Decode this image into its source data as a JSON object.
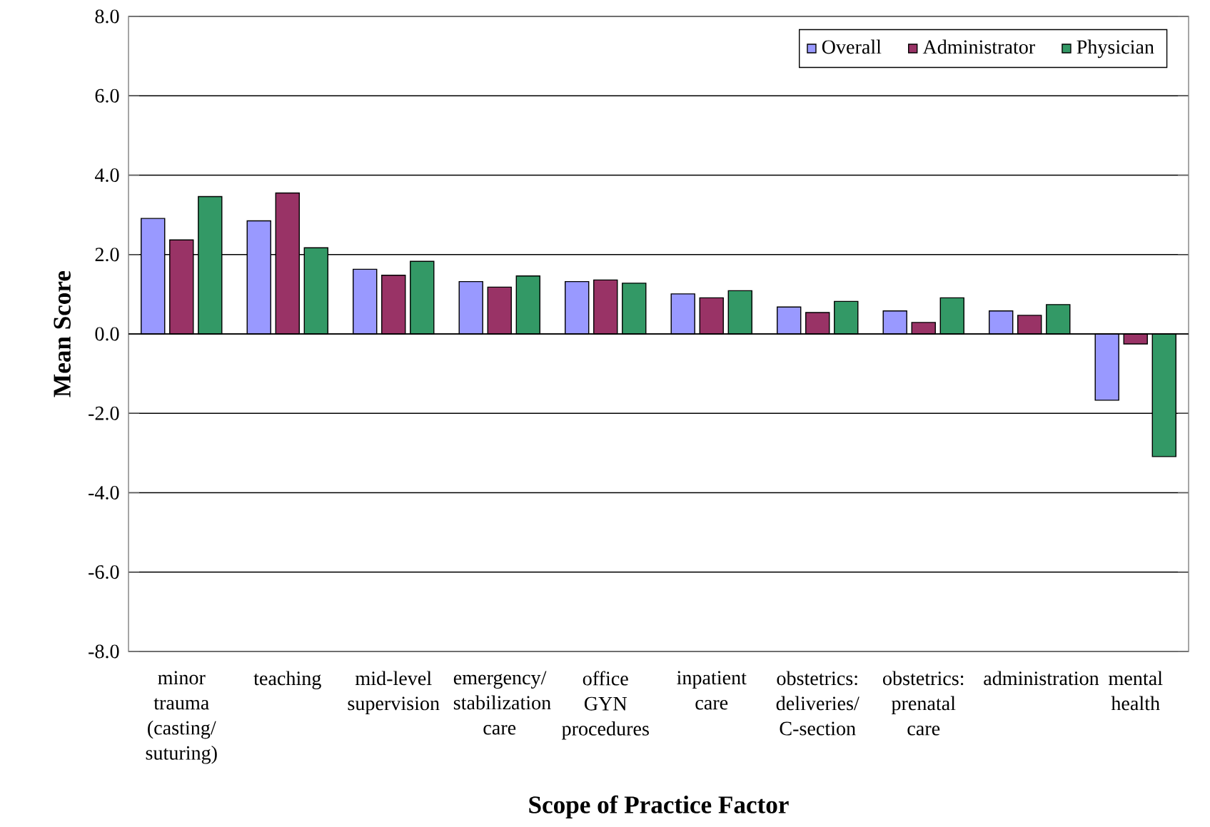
{
  "chart_data": {
    "type": "bar",
    "xlabel": "Scope of Practice Factor",
    "ylabel": "Mean Score",
    "categories": [
      "minor trauma (casting/suturing)",
      "teaching",
      "mid-level supervision",
      "emergency/stabilization care",
      "office GYN procedures",
      "inpatient care",
      "obstetrics: deliveries/C-section",
      "obstetrics: prenatal care",
      "administration",
      "mental health"
    ],
    "series": [
      {
        "name": "Overall",
        "color": "#9999ff",
        "values": [
          2.91,
          2.85,
          1.63,
          1.32,
          1.32,
          1.01,
          0.68,
          0.58,
          0.58,
          -1.67
        ]
      },
      {
        "name": "Administrator",
        "color": "#993366",
        "values": [
          2.37,
          3.55,
          1.48,
          1.18,
          1.36,
          0.91,
          0.54,
          0.29,
          0.47,
          -0.25
        ]
      },
      {
        "name": "Physician",
        "color": "#339966",
        "values": [
          3.46,
          2.17,
          1.83,
          1.46,
          1.28,
          1.09,
          0.82,
          0.91,
          0.74,
          -3.09
        ]
      }
    ],
    "ylim": [
      -8,
      8
    ],
    "yticks": [
      {
        "value": -8,
        "label": "-8.0"
      },
      {
        "value": -6,
        "label": "-6.0"
      },
      {
        "value": -4,
        "label": "-4.0"
      },
      {
        "value": -2,
        "label": "-2.0"
      },
      {
        "value": 0,
        "label": "0.0"
      },
      {
        "value": 2,
        "label": "2.0"
      },
      {
        "value": 4,
        "label": "4.0"
      },
      {
        "value": 6,
        "label": "6.0"
      },
      {
        "value": 8,
        "label": "8.0"
      }
    ],
    "grid": "y",
    "legend": "top right"
  }
}
